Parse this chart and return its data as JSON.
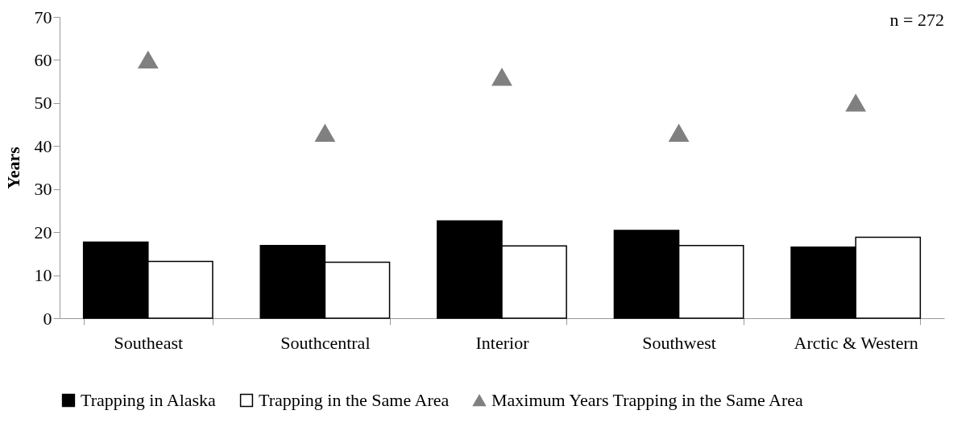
{
  "chart_data": {
    "type": "bar",
    "ylabel": "Years",
    "categories": [
      "Southeast",
      "Southcentral",
      "Interior",
      "Southwest",
      "Arctic & Western"
    ],
    "series": [
      {
        "name": "Trapping in Alaska",
        "color": "#000000",
        "values": [
          17.7,
          16.9,
          22.6,
          20.4,
          16.5
        ]
      },
      {
        "name": "Trapping in the Same Area",
        "color": "#ffffff",
        "values": [
          13.2,
          13.0,
          16.8,
          16.9,
          18.8
        ]
      },
      {
        "name": "Maximum Years Trapping in the Same Area",
        "type": "scatter",
        "marker": "triangle",
        "color": "#808080",
        "values": [
          60,
          43,
          56,
          43,
          50
        ]
      }
    ],
    "ylim": [
      0,
      70
    ],
    "yticks": [
      0,
      10,
      20,
      30,
      40,
      50,
      60,
      70
    ],
    "grid": false,
    "legend": "bottom",
    "annotations": [
      "n = 272"
    ]
  }
}
